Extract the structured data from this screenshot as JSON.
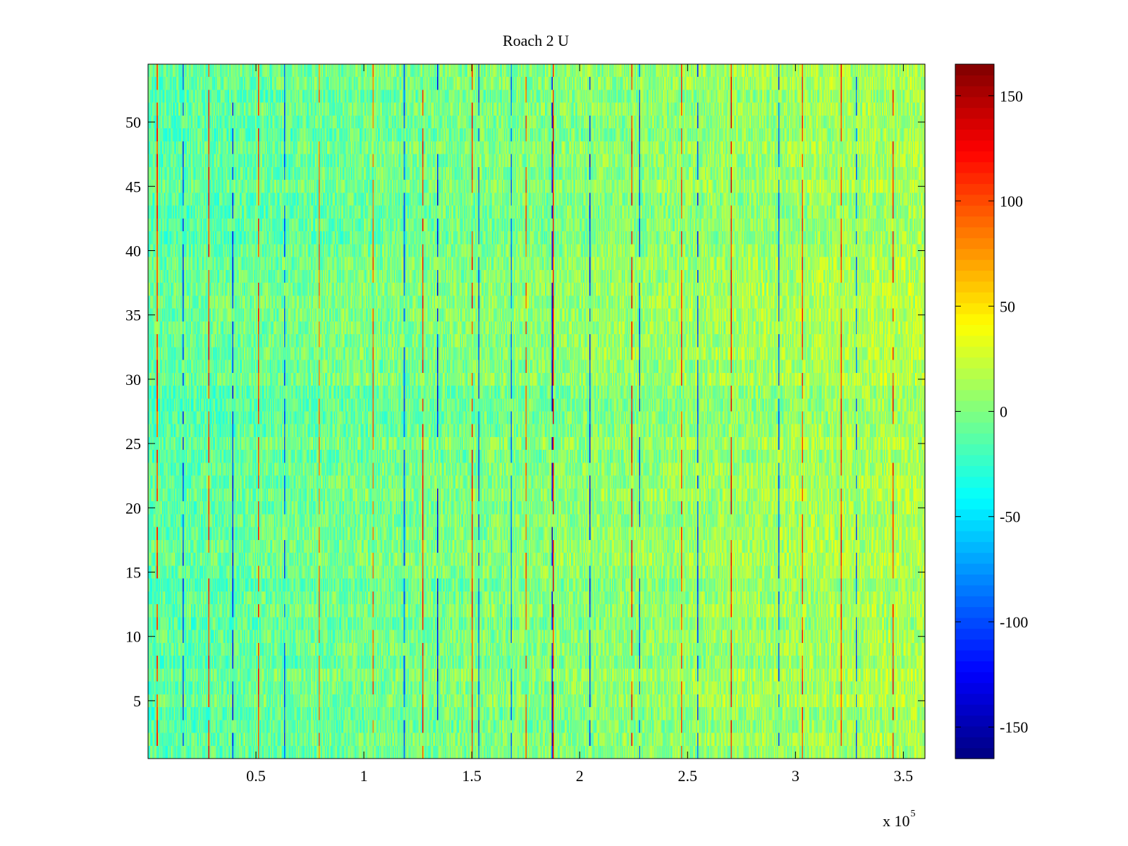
{
  "chart_data": {
    "type": "heatmap",
    "title": "Roach 2 U",
    "xlabel": "",
    "ylabel": "",
    "x_exponent_label": "x 10",
    "x_exponent": "5",
    "xlim": [
      0.0,
      3.6
    ],
    "ylim": [
      0.5,
      54.5
    ],
    "rows": 54,
    "columns": 720,
    "x_ticks": [
      0.5,
      1.0,
      1.5,
      2.0,
      2.5,
      3.0,
      3.5
    ],
    "x_tick_labels": [
      "0.5",
      "1",
      "1.5",
      "2",
      "2.5",
      "3",
      "3.5"
    ],
    "y_ticks": [
      5,
      10,
      15,
      20,
      25,
      30,
      35,
      40,
      45,
      50
    ],
    "y_tick_labels": [
      "5",
      "10",
      "15",
      "20",
      "25",
      "30",
      "35",
      "40",
      "45",
      "50"
    ],
    "colorbar": {
      "colormap": "jet",
      "clim": [
        -165,
        165
      ],
      "ticks": [
        150,
        100,
        50,
        0,
        -50,
        -100,
        -150
      ],
      "tick_labels": [
        "150",
        "100",
        "50",
        "0",
        "-50",
        "-100",
        "-150"
      ]
    },
    "background_level": {
      "left_region": -12,
      "right_region": 15,
      "spread": 22
    },
    "spike_columns": [
      {
        "x": 0.04,
        "value": 120
      },
      {
        "x": 0.16,
        "value": -120
      },
      {
        "x": 0.28,
        "value": 130
      },
      {
        "x": 0.39,
        "value": -130
      },
      {
        "x": 0.51,
        "value": 125
      },
      {
        "x": 0.63,
        "value": -110
      },
      {
        "x": 0.79,
        "value": 100
      },
      {
        "x": 1.04,
        "value": 110
      },
      {
        "x": 1.19,
        "value": -100
      },
      {
        "x": 1.27,
        "value": 130
      },
      {
        "x": 1.34,
        "value": -140
      },
      {
        "x": 1.5,
        "value": 125
      },
      {
        "x": 1.53,
        "value": -110
      },
      {
        "x": 1.68,
        "value": -100
      },
      {
        "x": 1.75,
        "value": 110
      },
      {
        "x": 1.87,
        "value": -150
      },
      {
        "x": 1.88,
        "value": 140
      },
      {
        "x": 2.05,
        "value": -130
      },
      {
        "x": 2.24,
        "value": 135
      },
      {
        "x": 2.28,
        "value": -110
      },
      {
        "x": 2.47,
        "value": 120
      },
      {
        "x": 2.55,
        "value": -120
      },
      {
        "x": 2.7,
        "value": 140
      },
      {
        "x": 2.92,
        "value": -110
      },
      {
        "x": 3.03,
        "value": 120
      },
      {
        "x": 3.21,
        "value": 130
      },
      {
        "x": 3.28,
        "value": -110
      },
      {
        "x": 3.45,
        "value": 130
      }
    ]
  }
}
